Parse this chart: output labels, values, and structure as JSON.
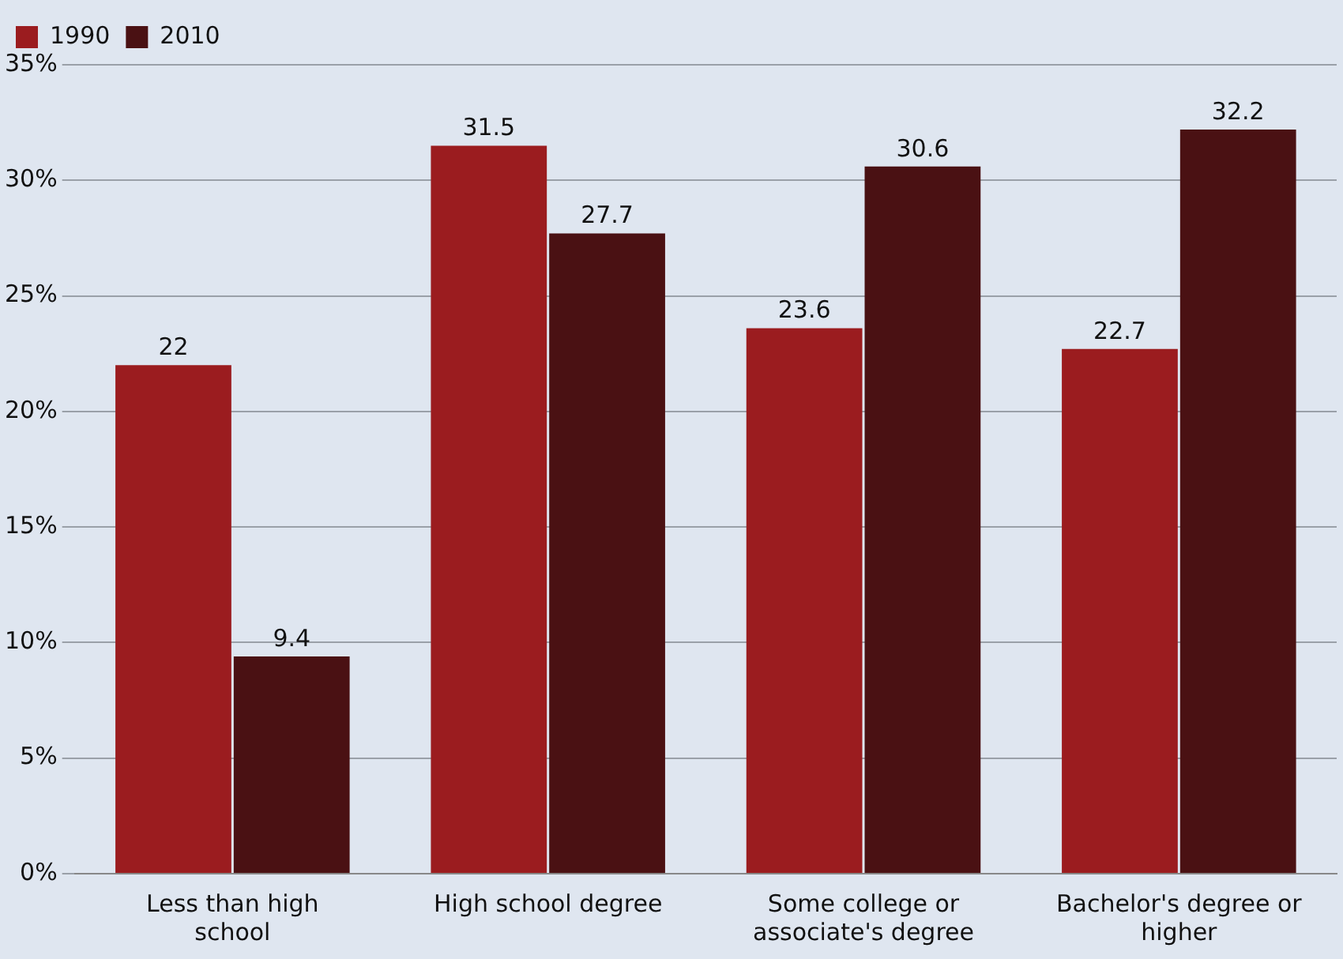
{
  "chart_data": {
    "type": "bar",
    "categories": [
      "Less than high school",
      "High school degree",
      "Some college or associate's degree",
      "Bachelor's degree or higher"
    ],
    "series": [
      {
        "name": "1990",
        "color": "#9b1c1f",
        "values": [
          22,
          31.5,
          23.6,
          22.7
        ]
      },
      {
        "name": "2010",
        "color": "#4a1113",
        "values": [
          9.4,
          27.7,
          30.6,
          32.2
        ]
      }
    ],
    "ylim": [
      0,
      35
    ],
    "yticks": [
      {
        "value": 0,
        "label": "0%"
      },
      {
        "value": 5,
        "label": "5%"
      },
      {
        "value": 10,
        "label": "10%"
      },
      {
        "value": 15,
        "label": "15%"
      },
      {
        "value": 20,
        "label": "20%"
      },
      {
        "value": 25,
        "label": "25%"
      },
      {
        "value": 30,
        "label": "30%"
      },
      {
        "value": 35,
        "label": "35%"
      }
    ],
    "grid": "y",
    "legend": "top left",
    "data_labels": true
  }
}
